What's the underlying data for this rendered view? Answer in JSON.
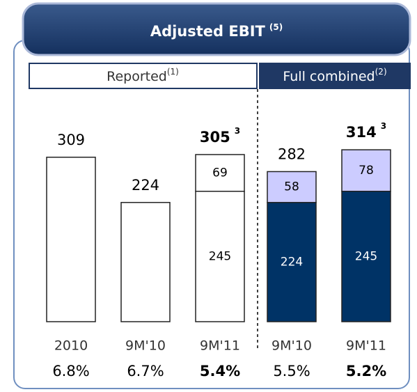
{
  "chart_data": {
    "type": "bar",
    "title": "Adjusted EBIT",
    "title_note": "(5)",
    "sections": [
      {
        "label": "Reported",
        "note": "(1)"
      },
      {
        "label": "Full combined",
        "note": "(2)"
      }
    ],
    "categories": [
      "2010",
      "9M'10",
      "9M'11",
      "9M'10",
      "9M'11"
    ],
    "series": [
      {
        "values": [
          309,
          224,
          245,
          224,
          245
        ],
        "colors": [
          "#ffffff",
          "#ffffff",
          "#ffffff",
          "#003366",
          "#003366"
        ]
      },
      {
        "values": [
          null,
          null,
          69,
          58,
          78
        ],
        "colors": [
          null,
          null,
          "#ffffff",
          "#ccccff",
          "#ccccff"
        ]
      }
    ],
    "totals": [
      309,
      224,
      305,
      282,
      314
    ],
    "total_notes": [
      null,
      null,
      "3",
      null,
      "3"
    ],
    "margins": [
      "6.8%",
      "6.7%",
      "5.4%",
      "5.5%",
      "5.2%"
    ],
    "bold": [
      false,
      false,
      true,
      false,
      true
    ]
  }
}
